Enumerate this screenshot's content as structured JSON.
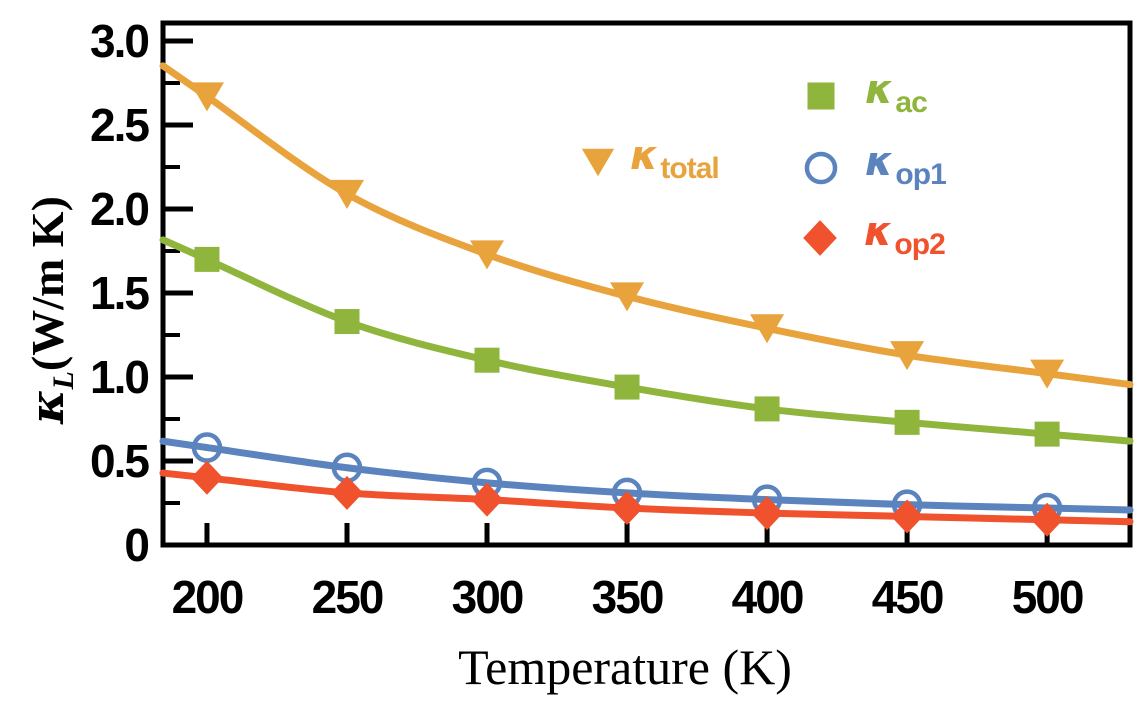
{
  "chart_data": {
    "type": "line",
    "title": "",
    "xlabel": "Temperature (K)",
    "ylabel": {
      "kappa": "κ",
      "kappa_sub": "L",
      "units": "(W/m K)"
    },
    "x": [
      200,
      250,
      300,
      350,
      400,
      450,
      500
    ],
    "xtick_labels": [
      "200",
      "250",
      "300",
      "350",
      "400",
      "450",
      "500"
    ],
    "xtick_values": [
      200,
      250,
      300,
      350,
      400,
      450,
      500
    ],
    "ytick_labels": [
      "0",
      "0.5",
      "1.0",
      "1.5",
      "2.0",
      "2.5",
      "3.0"
    ],
    "ytick_values": [
      0,
      0.5,
      1.0,
      1.5,
      2.0,
      2.5,
      3.0
    ],
    "yticks_minor": [
      0.25,
      0.75,
      1.25,
      1.75,
      2.25,
      2.75
    ],
    "xlim": [
      184.3,
      529.6
    ],
    "ylim": [
      0,
      3.107
    ],
    "grid": false,
    "legend_position": "upper right inside",
    "axis_color": "#000000",
    "series": [
      {
        "name": "κ_total",
        "label_kappa": "κ",
        "label_sub": "total",
        "marker": "triangle-down",
        "color": "#E8A33C",
        "values": [
          2.67,
          2.09,
          1.73,
          1.48,
          1.29,
          1.13,
          1.02
        ]
      },
      {
        "name": "κ_ac",
        "label_kappa": "κ",
        "label_sub": "ac",
        "marker": "square",
        "color": "#8FB53D",
        "values": [
          1.7,
          1.33,
          1.1,
          0.94,
          0.81,
          0.73,
          0.66
        ]
      },
      {
        "name": "κ_op1",
        "label_kappa": "κ",
        "label_sub": "op1",
        "marker": "circle-open",
        "color": "#5B83BE",
        "values": [
          0.58,
          0.46,
          0.37,
          0.31,
          0.27,
          0.24,
          0.22
        ]
      },
      {
        "name": "κ_op2",
        "label_kappa": "κ",
        "label_sub": "op2",
        "marker": "diamond",
        "color": "#EF522D",
        "values": [
          0.4,
          0.31,
          0.27,
          0.22,
          0.19,
          0.17,
          0.15
        ]
      }
    ]
  }
}
